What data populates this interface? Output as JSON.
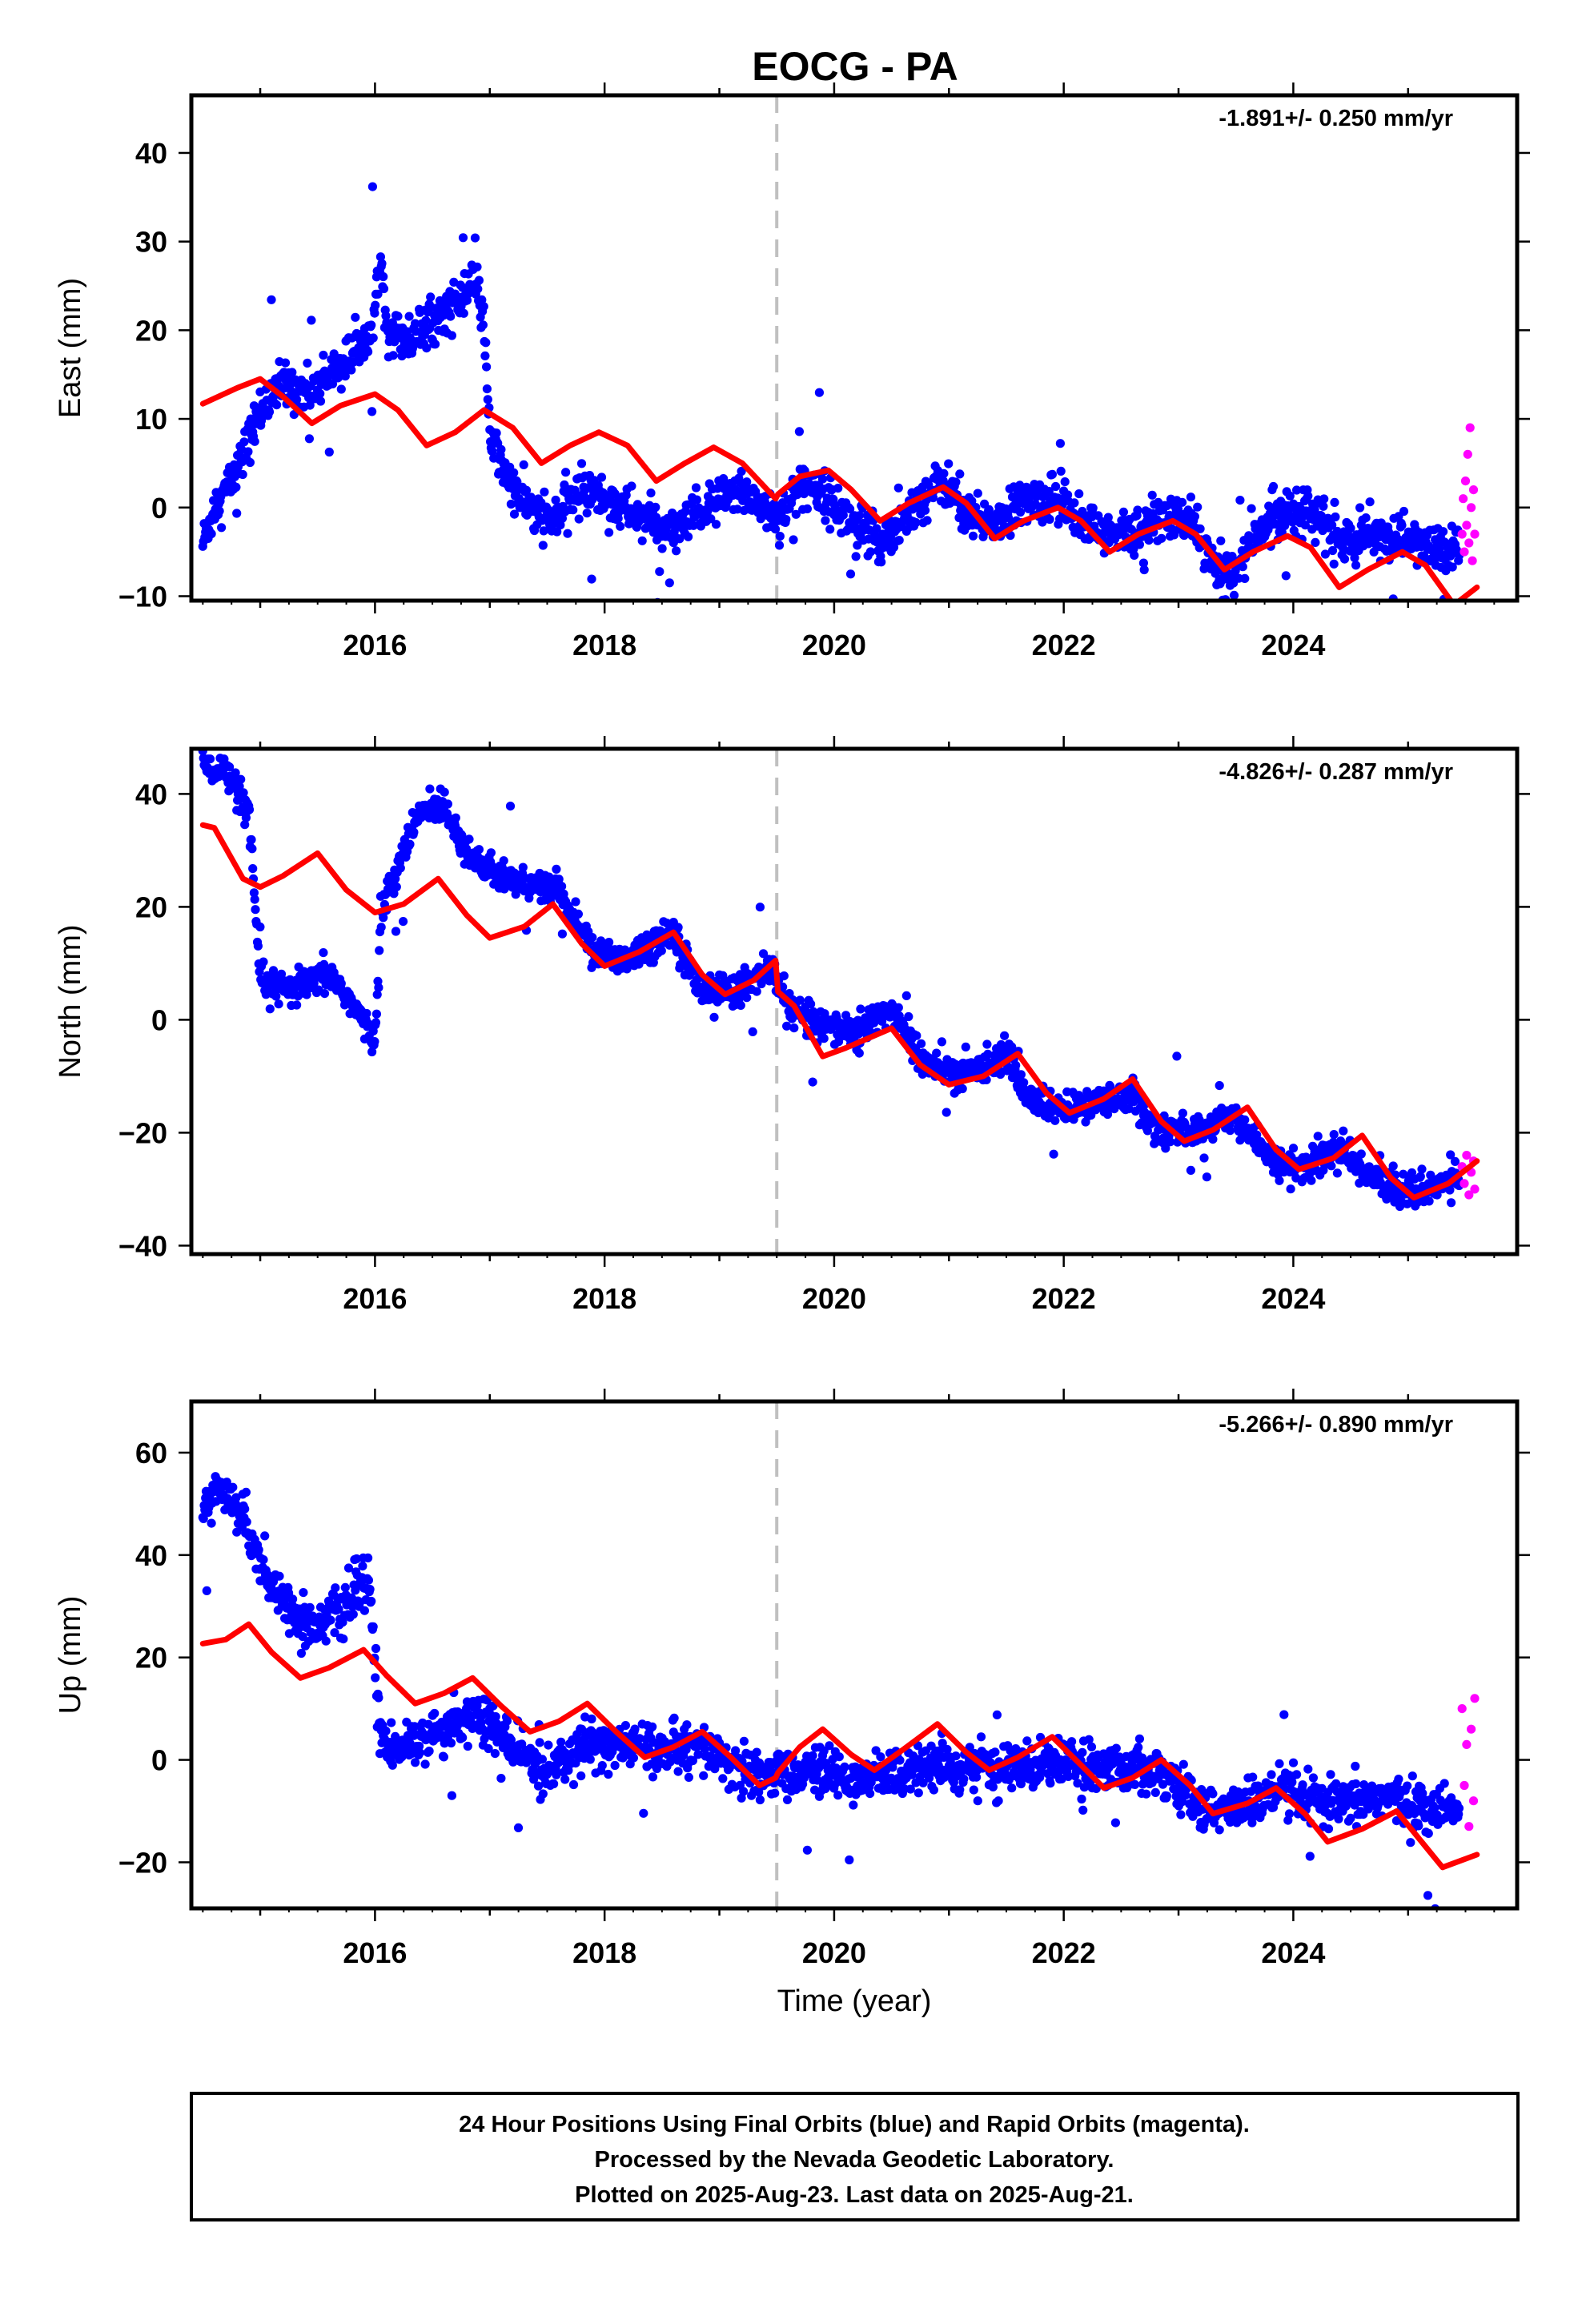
{
  "title": "EOCG - PA",
  "colors": {
    "final": "#0000ff",
    "rapid": "#ff00ff",
    "model": "#ff0000",
    "marker": "#c0c0c0"
  },
  "chart_data": [
    {
      "type": "scatter",
      "component": "east",
      "ylabel": "East (mm)",
      "rate_label": "-1.891+/- 0.250 mm/yr",
      "xlim": [
        2014.4,
        2025.95
      ],
      "ylim": [
        -10.5,
        46.5
      ],
      "x_ticks": [
        2016,
        2018,
        2020,
        2022,
        2024
      ],
      "x_tick_labels": [
        "2016",
        "2018",
        "2020",
        "2022",
        "2024"
      ],
      "y_ticks": [
        -10,
        0,
        10,
        20,
        30,
        40
      ],
      "y_tick_labels": [
        "−10",
        "0",
        "10",
        "20",
        "30",
        "40"
      ],
      "vline_x": 2019.5,
      "final_orbits_trend": [
        [
          2014.5,
          -4
        ],
        [
          2014.6,
          0
        ],
        [
          2014.8,
          4
        ],
        [
          2015.0,
          11
        ],
        [
          2015.2,
          14
        ],
        [
          2015.4,
          13
        ],
        [
          2015.6,
          15
        ],
        [
          2015.8,
          17
        ],
        [
          2016.0,
          22
        ],
        [
          2016.05,
          30
        ],
        [
          2016.1,
          20
        ],
        [
          2016.3,
          19
        ],
        [
          2016.6,
          22
        ],
        [
          2016.9,
          25
        ],
        [
          2016.95,
          20
        ],
        [
          2017.0,
          8
        ],
        [
          2017.2,
          2
        ],
        [
          2017.5,
          -2
        ],
        [
          2017.8,
          2
        ],
        [
          2018.0,
          1
        ],
        [
          2018.3,
          -1
        ],
        [
          2018.6,
          -3
        ],
        [
          2018.9,
          0
        ],
        [
          2019.2,
          2
        ],
        [
          2019.5,
          -1
        ],
        [
          2019.8,
          3
        ],
        [
          2020.1,
          -1
        ],
        [
          2020.4,
          -4
        ],
        [
          2020.7,
          0
        ],
        [
          2020.95,
          3
        ],
        [
          2021.2,
          -1
        ],
        [
          2021.4,
          -2
        ],
        [
          2021.7,
          1
        ],
        [
          2022.0,
          1
        ],
        [
          2022.3,
          -3
        ],
        [
          2022.6,
          -3
        ],
        [
          2022.9,
          -1
        ],
        [
          2023.15,
          -2
        ],
        [
          2023.35,
          -8
        ],
        [
          2023.55,
          -6
        ],
        [
          2023.8,
          -1
        ],
        [
          2024.0,
          0
        ],
        [
          2024.2,
          -1
        ],
        [
          2024.35,
          -3
        ],
        [
          2024.5,
          -4
        ],
        [
          2024.8,
          -3
        ],
        [
          2025.1,
          -4
        ],
        [
          2025.3,
          -5
        ],
        [
          2025.45,
          -4
        ]
      ],
      "final_orbits_spread": 2.5,
      "rapid_orbits": [
        [
          2025.47,
          -3
        ],
        [
          2025.48,
          1
        ],
        [
          2025.49,
          -5
        ],
        [
          2025.5,
          3
        ],
        [
          2025.51,
          -2
        ],
        [
          2025.52,
          6
        ],
        [
          2025.53,
          -4
        ],
        [
          2025.54,
          9
        ],
        [
          2025.55,
          0
        ],
        [
          2025.56,
          -6
        ],
        [
          2025.57,
          2
        ],
        [
          2025.58,
          -3
        ]
      ],
      "model_line": [
        [
          2014.5,
          11.7
        ],
        [
          2014.8,
          13.5
        ],
        [
          2015.0,
          14.5
        ],
        [
          2015.2,
          12.5
        ],
        [
          2015.45,
          9.5
        ],
        [
          2015.7,
          11.5
        ],
        [
          2016.0,
          12.8
        ],
        [
          2016.2,
          11.0
        ],
        [
          2016.45,
          7.0
        ],
        [
          2016.7,
          8.5
        ],
        [
          2016.95,
          11.0
        ],
        [
          2017.2,
          9.0
        ],
        [
          2017.45,
          5.0
        ],
        [
          2017.7,
          7.0
        ],
        [
          2017.95,
          8.5
        ],
        [
          2018.2,
          7.0
        ],
        [
          2018.45,
          3.0
        ],
        [
          2018.7,
          5.0
        ],
        [
          2018.95,
          6.8
        ],
        [
          2019.2,
          5.0
        ],
        [
          2019.49,
          1.0
        ],
        [
          2019.51,
          1.5
        ],
        [
          2019.7,
          3.5
        ],
        [
          2019.95,
          4.2
        ],
        [
          2020.15,
          2.0
        ],
        [
          2020.4,
          -1.5
        ],
        [
          2020.65,
          0.5
        ],
        [
          2020.95,
          2.3
        ],
        [
          2021.15,
          0.5
        ],
        [
          2021.4,
          -3.5
        ],
        [
          2021.65,
          -1.5
        ],
        [
          2021.95,
          0.0
        ],
        [
          2022.15,
          -1.5
        ],
        [
          2022.4,
          -5.0
        ],
        [
          2022.65,
          -3.0
        ],
        [
          2022.95,
          -1.5
        ],
        [
          2023.15,
          -3.0
        ],
        [
          2023.4,
          -7.0
        ],
        [
          2023.65,
          -5.0
        ],
        [
          2023.95,
          -3.2
        ],
        [
          2024.15,
          -4.5
        ],
        [
          2024.4,
          -9.0
        ],
        [
          2024.65,
          -7.0
        ],
        [
          2024.95,
          -5.0
        ],
        [
          2025.15,
          -6.5
        ],
        [
          2025.4,
          -11.0
        ],
        [
          2025.6,
          -9.0
        ]
      ]
    },
    {
      "type": "scatter",
      "component": "north",
      "ylabel": "North (mm)",
      "rate_label": "-4.826+/- 0.287 mm/yr",
      "xlim": [
        2014.4,
        2025.95
      ],
      "ylim": [
        -41.5,
        48
      ],
      "x_ticks": [
        2016,
        2018,
        2020,
        2022,
        2024
      ],
      "x_tick_labels": [
        "2016",
        "2018",
        "2020",
        "2022",
        "2024"
      ],
      "y_ticks": [
        -40,
        -20,
        0,
        20,
        40
      ],
      "y_tick_labels": [
        "−40",
        "−20",
        "0",
        "20",
        "40"
      ],
      "vline_x": 2019.5,
      "final_orbits_trend": [
        [
          2014.5,
          45
        ],
        [
          2014.7,
          44
        ],
        [
          2014.9,
          36
        ],
        [
          2015.0,
          7
        ],
        [
          2015.2,
          5
        ],
        [
          2015.4,
          6
        ],
        [
          2015.6,
          8
        ],
        [
          2015.8,
          3
        ],
        [
          2016.0,
          -4
        ],
        [
          2016.05,
          19
        ],
        [
          2016.2,
          27
        ],
        [
          2016.4,
          37
        ],
        [
          2016.6,
          38
        ],
        [
          2016.8,
          30
        ],
        [
          2017.0,
          26
        ],
        [
          2017.3,
          24
        ],
        [
          2017.6,
          23
        ],
        [
          2017.9,
          12
        ],
        [
          2018.2,
          11
        ],
        [
          2018.6,
          16
        ],
        [
          2018.8,
          6
        ],
        [
          2019.1,
          5
        ],
        [
          2019.45,
          9
        ],
        [
          2019.6,
          2
        ],
        [
          2019.9,
          -1
        ],
        [
          2020.2,
          -2
        ],
        [
          2020.5,
          2
        ],
        [
          2020.8,
          -8
        ],
        [
          2021.1,
          -10
        ],
        [
          2021.5,
          -6
        ],
        [
          2021.7,
          -14
        ],
        [
          2022.0,
          -16
        ],
        [
          2022.3,
          -15
        ],
        [
          2022.6,
          -13
        ],
        [
          2022.8,
          -20
        ],
        [
          2023.1,
          -20
        ],
        [
          2023.5,
          -17
        ],
        [
          2023.8,
          -25
        ],
        [
          2024.1,
          -26
        ],
        [
          2024.4,
          -23
        ],
        [
          2024.7,
          -28
        ],
        [
          2025.0,
          -31
        ],
        [
          2025.3,
          -29
        ],
        [
          2025.45,
          -28
        ]
      ],
      "final_orbits_spread": 2.8,
      "rapid_orbits": [
        [
          2025.47,
          -26
        ],
        [
          2025.49,
          -29
        ],
        [
          2025.51,
          -24
        ],
        [
          2025.53,
          -31
        ],
        [
          2025.55,
          -27
        ],
        [
          2025.57,
          -25
        ],
        [
          2025.58,
          -30
        ]
      ],
      "model_line": [
        [
          2014.5,
          34.5
        ],
        [
          2014.6,
          34.0
        ],
        [
          2014.85,
          25.0
        ],
        [
          2015.0,
          23.5
        ],
        [
          2015.2,
          25.5
        ],
        [
          2015.5,
          29.5
        ],
        [
          2015.75,
          23.0
        ],
        [
          2016.0,
          19.0
        ],
        [
          2016.25,
          20.5
        ],
        [
          2016.55,
          25.0
        ],
        [
          2016.8,
          18.5
        ],
        [
          2017.0,
          14.5
        ],
        [
          2017.3,
          16.5
        ],
        [
          2017.55,
          20.5
        ],
        [
          2017.8,
          13.5
        ],
        [
          2018.0,
          9.5
        ],
        [
          2018.3,
          12.0
        ],
        [
          2018.6,
          15.5
        ],
        [
          2018.85,
          8.0
        ],
        [
          2019.05,
          4.5
        ],
        [
          2019.3,
          7.0
        ],
        [
          2019.49,
          10.5
        ],
        [
          2019.51,
          5.0
        ],
        [
          2019.65,
          2.5
        ],
        [
          2019.9,
          -6.5
        ],
        [
          2020.1,
          -5.0
        ],
        [
          2020.5,
          -1.5
        ],
        [
          2020.75,
          -8.0
        ],
        [
          2021.0,
          -11.5
        ],
        [
          2021.3,
          -10.0
        ],
        [
          2021.6,
          -6.0
        ],
        [
          2021.85,
          -13.0
        ],
        [
          2022.05,
          -16.5
        ],
        [
          2022.35,
          -14.0
        ],
        [
          2022.6,
          -10.5
        ],
        [
          2022.85,
          -18.0
        ],
        [
          2023.05,
          -21.5
        ],
        [
          2023.3,
          -19.5
        ],
        [
          2023.6,
          -15.5
        ],
        [
          2023.85,
          -23.0
        ],
        [
          2024.05,
          -26.5
        ],
        [
          2024.35,
          -24.5
        ],
        [
          2024.6,
          -20.5
        ],
        [
          2024.85,
          -28.0
        ],
        [
          2025.05,
          -31.5
        ],
        [
          2025.35,
          -29.0
        ],
        [
          2025.6,
          -25.0
        ]
      ]
    },
    {
      "type": "scatter",
      "component": "up",
      "ylabel": "Up (mm)",
      "rate_label": "-5.266+/- 0.890 mm/yr",
      "xlim": [
        2014.4,
        2025.95
      ],
      "ylim": [
        -29,
        70
      ],
      "x_ticks": [
        2016,
        2018,
        2020,
        2022,
        2024
      ],
      "x_tick_labels": [
        "2016",
        "2018",
        "2020",
        "2022",
        "2024"
      ],
      "y_ticks": [
        -20,
        0,
        20,
        40,
        60
      ],
      "y_tick_labels": [
        "−20",
        "0",
        "20",
        "40",
        "60"
      ],
      "vline_x": 2019.5,
      "xlabel": "Time (year)",
      "final_orbits_trend": [
        [
          2014.5,
          50
        ],
        [
          2014.7,
          52
        ],
        [
          2014.9,
          45
        ],
        [
          2015.1,
          33
        ],
        [
          2015.4,
          26
        ],
        [
          2015.7,
          29
        ],
        [
          2015.95,
          35
        ],
        [
          2016.05,
          3
        ],
        [
          2016.3,
          3
        ],
        [
          2016.6,
          6
        ],
        [
          2016.9,
          9
        ],
        [
          2017.2,
          2
        ],
        [
          2017.5,
          -3
        ],
        [
          2017.8,
          3
        ],
        [
          2018.1,
          3
        ],
        [
          2018.5,
          2
        ],
        [
          2018.9,
          2
        ],
        [
          2019.2,
          -3
        ],
        [
          2019.5,
          -3
        ],
        [
          2019.8,
          -2
        ],
        [
          2020.2,
          -4
        ],
        [
          2020.6,
          -2
        ],
        [
          2020.9,
          -1
        ],
        [
          2021.3,
          -2
        ],
        [
          2021.7,
          -1
        ],
        [
          2022.0,
          0
        ],
        [
          2022.3,
          -2
        ],
        [
          2022.6,
          -1
        ],
        [
          2022.85,
          -2
        ],
        [
          2023.2,
          -10
        ],
        [
          2023.6,
          -9
        ],
        [
          2023.9,
          -6
        ],
        [
          2024.1,
          -8
        ],
        [
          2024.4,
          -9
        ],
        [
          2024.8,
          -7
        ],
        [
          2025.2,
          -10
        ],
        [
          2025.45,
          -10
        ]
      ],
      "final_orbits_spread": 4.5,
      "rapid_orbits": [
        [
          2025.47,
          10
        ],
        [
          2025.49,
          -5
        ],
        [
          2025.51,
          3
        ],
        [
          2025.53,
          -13
        ],
        [
          2025.55,
          6
        ],
        [
          2025.57,
          -8
        ],
        [
          2025.58,
          12
        ]
      ],
      "model_line": [
        [
          2014.5,
          22.7
        ],
        [
          2014.7,
          23.5
        ],
        [
          2014.9,
          26.5
        ],
        [
          2015.1,
          21.0
        ],
        [
          2015.35,
          16.0
        ],
        [
          2015.6,
          18.0
        ],
        [
          2015.9,
          21.5
        ],
        [
          2016.1,
          16.5
        ],
        [
          2016.35,
          11.0
        ],
        [
          2016.6,
          13.0
        ],
        [
          2016.85,
          16.0
        ],
        [
          2017.1,
          10.5
        ],
        [
          2017.35,
          5.5
        ],
        [
          2017.6,
          7.5
        ],
        [
          2017.85,
          11.0
        ],
        [
          2018.1,
          5.5
        ],
        [
          2018.35,
          0.5
        ],
        [
          2018.6,
          2.5
        ],
        [
          2018.85,
          5.5
        ],
        [
          2019.1,
          0.5
        ],
        [
          2019.35,
          -5.0
        ],
        [
          2019.49,
          -3.5
        ],
        [
          2019.51,
          -2.5
        ],
        [
          2019.7,
          2.5
        ],
        [
          2019.9,
          6.0
        ],
        [
          2020.15,
          1.0
        ],
        [
          2020.35,
          -2.0
        ],
        [
          2020.6,
          2.0
        ],
        [
          2020.9,
          7.0
        ],
        [
          2021.15,
          1.5
        ],
        [
          2021.35,
          -2.0
        ],
        [
          2021.6,
          0.5
        ],
        [
          2021.9,
          4.5
        ],
        [
          2022.15,
          -1.0
        ],
        [
          2022.35,
          -5.5
        ],
        [
          2022.6,
          -3.5
        ],
        [
          2022.85,
          0.0
        ],
        [
          2023.1,
          -5.0
        ],
        [
          2023.3,
          -10.5
        ],
        [
          2023.6,
          -8.5
        ],
        [
          2023.85,
          -5.5
        ],
        [
          2024.1,
          -10.5
        ],
        [
          2024.3,
          -16.0
        ],
        [
          2024.6,
          -13.5
        ],
        [
          2024.9,
          -10.0
        ],
        [
          2025.1,
          -15.5
        ],
        [
          2025.3,
          -21.0
        ],
        [
          2025.6,
          -18.5
        ]
      ]
    }
  ],
  "footer_lines": [
    "24 Hour Positions Using Final Orbits (blue) and Rapid Orbits (magenta).",
    "Processed by the Nevada Geodetic Laboratory.",
    "Plotted on 2025-Aug-23. Last data on 2025-Aug-21."
  ]
}
